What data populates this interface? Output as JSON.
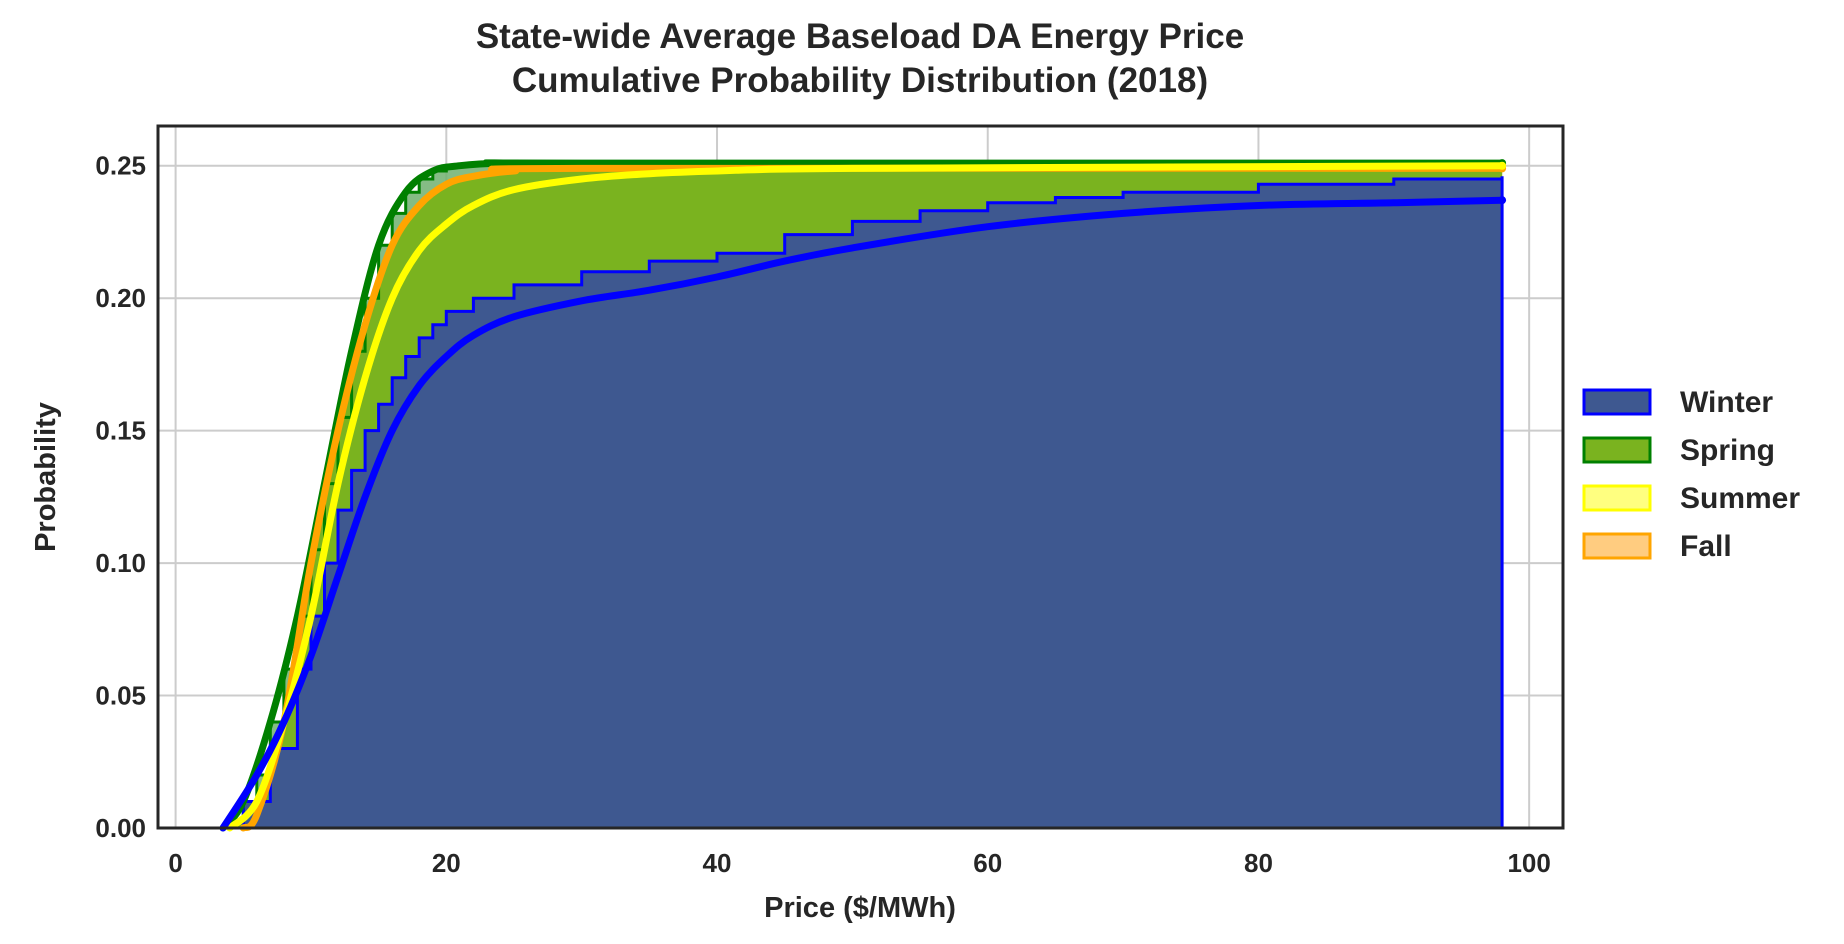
{
  "chart_data": {
    "type": "area",
    "title": [
      "State-wide Average Baseload DA Energy Price",
      "Cumulative Probability Distribution (2018)"
    ],
    "xlabel": "Price ($/MWh)",
    "ylabel": "Probability",
    "xlim": [
      -1.3,
      102.5
    ],
    "ylim": [
      0,
      0.265
    ],
    "xticks": [
      0,
      20,
      40,
      60,
      80,
      100
    ],
    "yticks": [
      0.0,
      0.05,
      0.1,
      0.15,
      0.2,
      0.25
    ],
    "xtick_labels": [
      "0",
      "20",
      "40",
      "60",
      "80",
      "100"
    ],
    "ytick_labels": [
      "0.00",
      "0.05",
      "0.10",
      "0.15",
      "0.20",
      "0.25"
    ],
    "grid": true,
    "legend_position": "right",
    "series": [
      {
        "name": "Winter",
        "color": "#0000ff",
        "fill_color": "#3e5890",
        "step_x": [
          3.5,
          5,
          7,
          9,
          10,
          11,
          12,
          13,
          14,
          15,
          16,
          17,
          18,
          19,
          20,
          22,
          25,
          30,
          35,
          40,
          45,
          50,
          55,
          60,
          65,
          70,
          80,
          90,
          98
        ],
        "step_y": [
          0.0,
          0.01,
          0.03,
          0.06,
          0.08,
          0.1,
          0.12,
          0.135,
          0.15,
          0.16,
          0.17,
          0.178,
          0.185,
          0.19,
          0.195,
          0.2,
          0.205,
          0.21,
          0.214,
          0.217,
          0.224,
          0.229,
          0.233,
          0.236,
          0.238,
          0.24,
          0.243,
          0.245,
          0.246
        ],
        "curve_x": [
          3.5,
          6,
          8,
          10,
          12,
          14,
          16,
          18,
          20,
          22,
          25,
          30,
          35,
          40,
          45,
          50,
          60,
          70,
          80,
          90,
          98
        ],
        "curve_y": [
          0.0,
          0.02,
          0.04,
          0.065,
          0.095,
          0.125,
          0.15,
          0.167,
          0.178,
          0.186,
          0.193,
          0.199,
          0.203,
          0.208,
          0.214,
          0.219,
          0.227,
          0.232,
          0.235,
          0.236,
          0.237
        ]
      },
      {
        "name": "Spring",
        "color": "#008000",
        "fill_color": "#7ab31f",
        "step_x": [
          3.5,
          5,
          6,
          7,
          8,
          9,
          10,
          11,
          12,
          13,
          14,
          15,
          16,
          17,
          18,
          19,
          20,
          22,
          98
        ],
        "step_y": [
          0.0,
          0.01,
          0.02,
          0.04,
          0.06,
          0.08,
          0.105,
          0.13,
          0.155,
          0.18,
          0.2,
          0.22,
          0.232,
          0.24,
          0.245,
          0.248,
          0.25,
          0.251,
          0.251
        ],
        "curve_x": [
          3.5,
          5,
          7,
          9,
          11,
          13,
          15,
          17,
          19,
          21,
          24,
          30,
          98
        ],
        "curve_y": [
          0.0,
          0.01,
          0.04,
          0.08,
          0.13,
          0.18,
          0.22,
          0.24,
          0.248,
          0.25,
          0.251,
          0.251,
          0.251
        ]
      },
      {
        "name": "Summer",
        "color": "#ffff00",
        "fill_color": "#ffff80",
        "curve_x": [
          4,
          6,
          8,
          10,
          12,
          14,
          16,
          18,
          20,
          22,
          25,
          30,
          35,
          40,
          50,
          98
        ],
        "curve_y": [
          0.0,
          0.01,
          0.04,
          0.08,
          0.13,
          0.17,
          0.2,
          0.218,
          0.228,
          0.235,
          0.241,
          0.245,
          0.247,
          0.248,
          0.249,
          0.25
        ]
      },
      {
        "name": "Fall",
        "color": "#ffa500",
        "fill_color": "#ffcc80",
        "curve_x": [
          5,
          6,
          8,
          10,
          12,
          14,
          16,
          18,
          20,
          22,
          25,
          30,
          98
        ],
        "curve_y": [
          0.0,
          0.005,
          0.04,
          0.1,
          0.15,
          0.19,
          0.22,
          0.235,
          0.243,
          0.246,
          0.248,
          0.249,
          0.249
        ]
      }
    ]
  }
}
